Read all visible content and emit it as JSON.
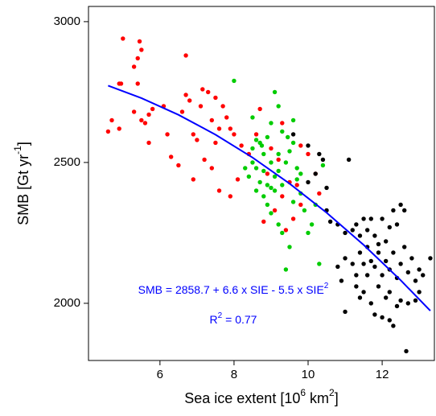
{
  "chart_data": {
    "type": "scatter",
    "x_label": {
      "text": "Sea ice extent [10",
      "sup1": "6",
      "mid": " km",
      "sup2": "2",
      "end": "]"
    },
    "y_label": {
      "text": "SMB [Gt yr",
      "sup": "-1",
      "end": "]"
    },
    "annotations": [
      {
        "text": "SMB = 2858.7 + 6.6 x SIE - 5.5 x SIE",
        "sup": "2",
        "color": "#0000ff"
      },
      {
        "text": "R",
        "sup": "2",
        "end": " = 0.77",
        "color": "#0000ff"
      }
    ],
    "xlim": [
      4.07,
      13.41
    ],
    "ylim": [
      1797,
      3054
    ],
    "xticks": [
      6,
      8,
      10,
      12
    ],
    "yticks": [
      2000,
      2500,
      3000
    ],
    "series": [
      {
        "color": "#ff0000",
        "x": [
          4.6,
          4.7,
          4.9,
          4.95,
          5.0,
          5.3,
          5.4,
          5.45,
          5.5,
          5.4,
          5.3,
          5.5,
          5.6,
          5.7,
          5.8,
          5.7,
          4.9,
          6.1,
          6.2,
          6.3,
          6.5,
          6.6,
          6.7,
          6.7,
          6.8,
          6.9,
          7.0,
          7.1,
          7.15,
          7.3,
          7.4,
          7.5,
          7.6,
          7.7,
          7.2,
          7.4,
          7.5,
          7.8,
          7.9,
          8.0,
          8.2,
          6.9,
          7.6,
          7.9,
          8.4,
          8.6,
          8.9,
          9.0,
          9.2,
          9.3,
          9.4,
          9.5,
          9.7,
          9.8,
          10.0,
          9.1,
          8.8,
          9.6,
          10.2,
          9.3,
          10.3,
          9.8,
          8.7,
          8.1
        ],
        "values": [
          2610,
          2650,
          2780,
          2780,
          2940,
          2840,
          2870,
          2930,
          2900,
          2780,
          2680,
          2650,
          2640,
          2670,
          2690,
          2570,
          2620,
          2700,
          2600,
          2520,
          2490,
          2680,
          2880,
          2740,
          2720,
          2600,
          2580,
          2700,
          2760,
          2750,
          2650,
          2730,
          2620,
          2700,
          2510,
          2480,
          2570,
          2660,
          2620,
          2600,
          2560,
          2440,
          2400,
          2380,
          2530,
          2600,
          2460,
          2550,
          2510,
          2380,
          2260,
          2430,
          2420,
          2350,
          2530,
          2330,
          2290,
          2300,
          2460,
          2640,
          2390,
          2560,
          2690,
          2440
        ]
      },
      {
        "color": "#00cc00",
        "x": [
          8.0,
          8.5,
          8.6,
          8.7,
          8.75,
          8.8,
          8.5,
          8.6,
          8.4,
          8.9,
          9.0,
          9.1,
          9.2,
          9.3,
          9.0,
          9.1,
          9.2,
          9.3,
          9.4,
          9.5,
          9.6,
          9.7,
          8.7,
          8.8,
          8.9,
          9.0,
          9.1,
          9.2,
          9.3,
          9.5,
          9.4,
          8.6,
          8.9,
          9.0,
          8.5,
          8.3,
          9.8,
          9.9,
          10.1,
          10.0,
          9.6,
          9.7,
          10.3,
          10.2,
          10.4,
          9.8,
          9.2,
          9.45,
          8.8,
          9.6
        ],
        "values": [
          2790,
          2660,
          2580,
          2570,
          2560,
          2530,
          2500,
          2480,
          2450,
          2590,
          2640,
          2750,
          2700,
          2610,
          2500,
          2450,
          2470,
          2420,
          2500,
          2540,
          2570,
          2480,
          2430,
          2380,
          2350,
          2320,
          2400,
          2280,
          2250,
          2200,
          2120,
          2400,
          2420,
          2410,
          2550,
          2480,
          2390,
          2330,
          2280,
          2250,
          2360,
          2440,
          2140,
          2350,
          2490,
          2460,
          2530,
          2590,
          2470,
          2650
        ]
      },
      {
        "color": "#000000",
        "x": [
          9.6,
          10.0,
          10.3,
          10.4,
          10.5,
          10.5,
          10.6,
          10.8,
          11.0,
          11.1,
          11.2,
          11.3,
          11.4,
          11.5,
          11.6,
          11.7,
          11.8,
          11.9,
          12.0,
          12.1,
          12.2,
          12.3,
          12.4,
          12.5,
          12.6,
          11.0,
          11.2,
          11.3,
          11.4,
          11.5,
          11.6,
          11.7,
          11.8,
          11.9,
          12.0,
          12.1,
          12.2,
          12.3,
          12.4,
          12.5,
          12.6,
          12.7,
          12.8,
          12.9,
          13.0,
          13.1,
          13.3,
          11.0,
          11.3,
          11.5,
          11.7,
          11.8,
          12.0,
          12.2,
          12.3,
          12.5,
          12.7,
          12.9,
          11.9,
          12.1,
          11.6,
          10.9,
          10.8,
          11.4,
          12.65,
          13.0,
          10.0,
          10.2,
          12.2,
          12.4
        ],
        "values": [
          2600,
          2560,
          2530,
          2510,
          2410,
          2330,
          2290,
          2280,
          2250,
          2510,
          2260,
          2280,
          2240,
          2300,
          2260,
          2300,
          2240,
          2210,
          2300,
          2220,
          2270,
          2330,
          2280,
          2350,
          2330,
          2160,
          2140,
          2100,
          2180,
          2140,
          2200,
          2150,
          2130,
          2180,
          2100,
          2150,
          2120,
          2180,
          2090,
          2140,
          2200,
          2110,
          2160,
          2080,
          2040,
          2100,
          2160,
          1970,
          2060,
          2040,
          2000,
          1960,
          1950,
          1940,
          1920,
          2010,
          2000,
          2010,
          2060,
          2020,
          2100,
          2080,
          2130,
          2020,
          1830,
          2120,
          2430,
          2460,
          2040,
          1990
        ]
      }
    ],
    "fit": {
      "color": "#0000ff",
      "x": [
        4.6,
        5.5,
        6.5,
        7.5,
        8.5,
        9.5,
        10.5,
        11.5,
        12.5,
        13.3
      ],
      "values": [
        2772.7,
        2728.6,
        2669.2,
        2598.8,
        2517.4,
        2425.0,
        2321.6,
        2207.2,
        2081.8,
        1973.5
      ]
    }
  }
}
